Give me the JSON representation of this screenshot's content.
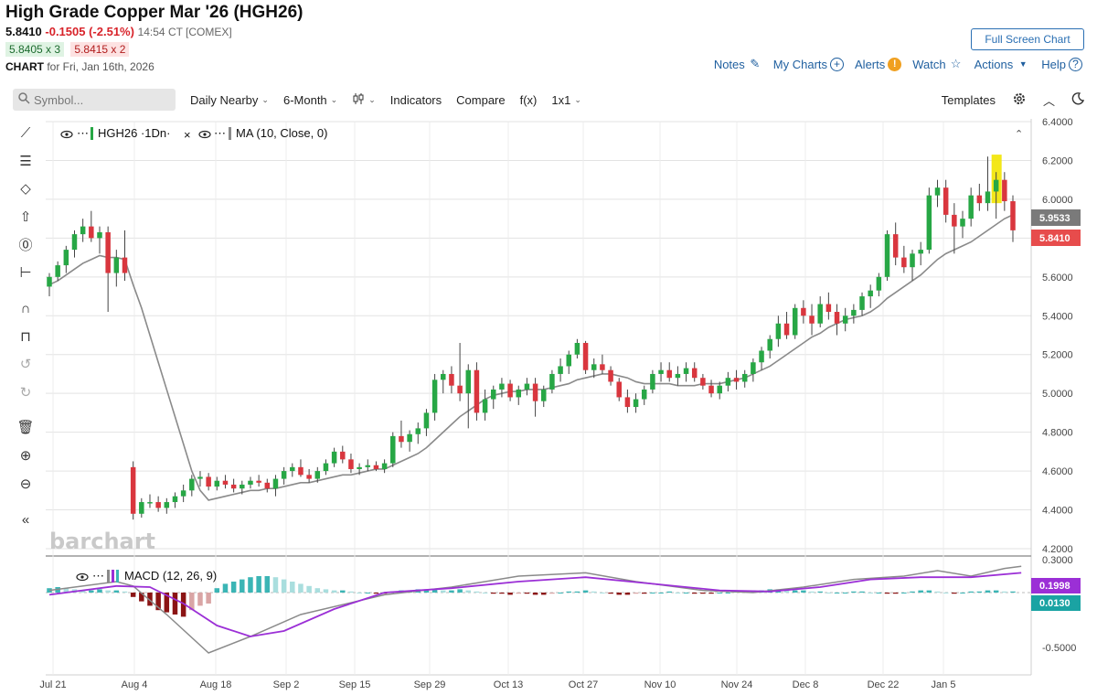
{
  "header": {
    "title": "High Grade Copper Mar '26 (HGH26)",
    "last": "5.8410",
    "change": "-0.1505 (-2.51%)",
    "timestamp": "14:54 CT [COMEX]",
    "bid": "5.8405 x 3",
    "ask": "5.8415 x 2",
    "chart_label": "CHART",
    "chart_date": "for Fri, Jan 16th, 2026"
  },
  "buttons": {
    "fullscreen": "Full Screen Chart",
    "notes": "Notes",
    "mycharts": "My Charts",
    "alerts": "Alerts",
    "watch": "Watch",
    "actions": "Actions",
    "help": "Help"
  },
  "toolbar": {
    "symbol_placeholder": "Symbol...",
    "interval": "Daily Nearby",
    "range": "6-Month",
    "indicators": "Indicators",
    "compare": "Compare",
    "fx": "f(x)",
    "layout": "1x1",
    "templates": "Templates"
  },
  "icons": {
    "symbol": "search-icon",
    "notes": "pencil-icon",
    "mycharts": "plus-circle-icon",
    "alerts": "exclamation-circle-icon",
    "watch": "star-icon",
    "actions": "caret-down-icon",
    "help": "question-circle-icon",
    "bar_type": "candlestick-icon",
    "settings": "gear-icon",
    "collapse": "chevron-up-icon",
    "theme": "moon-icon",
    "side_tools": [
      "line-tool-icon",
      "fib-tool-icon",
      "shape-tool-icon",
      "arrow-tool-icon",
      "text-tool-icon",
      "measure-tool-icon",
      "magnet-icon",
      "unlock-icon",
      "undo-icon",
      "redo-icon",
      "trash-icon",
      "zoom-in-icon",
      "zoom-out-icon",
      "collapse-sidebar-icon"
    ]
  },
  "legend": {
    "symbol": "HGH26 ·1Dn·",
    "ma": "MA (10, Close, 0)",
    "macd": "MACD (12, 26, 9)"
  },
  "watermark": "barchart",
  "colors": {
    "up": "#27a745",
    "down": "#d9363e",
    "ma": "#8a8a8a",
    "macd_line": "#8a8a8a",
    "signal_line": "#9b2fd6",
    "hist_pos": "#3bb5b5",
    "hist_pos_light": "#a9dede",
    "hist_neg": "#8b1414",
    "hist_neg_light": "#d9a5a5",
    "price_tag": "#e74c4c",
    "ma_tag": "#7a7a7a",
    "macd_tag": "#9b2fd6",
    "hist_tag": "#1aa3a3",
    "highlight": "#f2e400"
  },
  "chart_data": {
    "type": "candlestick",
    "ylim": [
      4.2,
      6.4
    ],
    "yticks": [
      "6.4000",
      "6.2000",
      "6.0000",
      "5.8000",
      "5.6000",
      "5.4000",
      "5.2000",
      "5.0000",
      "4.8000",
      "4.6000",
      "4.4000",
      "4.2000"
    ],
    "x_labels": [
      "Jul 21",
      "Aug 4",
      "Aug 18",
      "Sep 2",
      "Sep 15",
      "Sep 29",
      "Oct 13",
      "Oct 27",
      "Nov 10",
      "Nov 24",
      "Dec 8",
      "Dec 22",
      "Jan 5"
    ],
    "tags": {
      "ma": "5.9533",
      "last": "5.8410"
    },
    "series_note": "OHLC per trading day, in $/lb",
    "ohlc": [
      [
        5.55,
        5.62,
        5.5,
        5.6
      ],
      [
        5.6,
        5.68,
        5.58,
        5.66
      ],
      [
        5.66,
        5.76,
        5.62,
        5.74
      ],
      [
        5.74,
        5.84,
        5.7,
        5.82
      ],
      [
        5.82,
        5.9,
        5.78,
        5.86
      ],
      [
        5.86,
        5.94,
        5.78,
        5.8
      ],
      [
        5.8,
        5.86,
        5.72,
        5.83
      ],
      [
        5.83,
        5.86,
        5.42,
        5.62
      ],
      [
        5.62,
        5.74,
        5.55,
        5.7
      ],
      [
        5.7,
        5.84,
        5.58,
        5.62
      ],
      [
        4.62,
        4.65,
        4.35,
        4.38
      ],
      [
        4.38,
        4.46,
        4.36,
        4.44
      ],
      [
        4.44,
        4.48,
        4.41,
        4.44
      ],
      [
        4.44,
        4.47,
        4.39,
        4.41
      ],
      [
        4.41,
        4.46,
        4.38,
        4.44
      ],
      [
        4.44,
        4.49,
        4.41,
        4.47
      ],
      [
        4.47,
        4.53,
        4.44,
        4.5
      ],
      [
        4.5,
        4.58,
        4.47,
        4.56
      ],
      [
        4.56,
        4.6,
        4.52,
        4.57
      ],
      [
        4.57,
        4.59,
        4.5,
        4.52
      ],
      [
        4.52,
        4.57,
        4.5,
        4.55
      ],
      [
        4.55,
        4.58,
        4.51,
        4.53
      ],
      [
        4.53,
        4.56,
        4.49,
        4.51
      ],
      [
        4.51,
        4.55,
        4.48,
        4.53
      ],
      [
        4.53,
        4.57,
        4.51,
        4.55
      ],
      [
        4.55,
        4.58,
        4.52,
        4.54
      ],
      [
        4.54,
        4.56,
        4.49,
        4.51
      ],
      [
        4.51,
        4.58,
        4.47,
        4.56
      ],
      [
        4.56,
        4.62,
        4.53,
        4.6
      ],
      [
        4.6,
        4.64,
        4.57,
        4.62
      ],
      [
        4.62,
        4.66,
        4.57,
        4.58
      ],
      [
        4.58,
        4.61,
        4.54,
        4.56
      ],
      [
        4.56,
        4.62,
        4.54,
        4.6
      ],
      [
        4.6,
        4.66,
        4.58,
        4.64
      ],
      [
        4.64,
        4.72,
        4.62,
        4.7
      ],
      [
        4.7,
        4.73,
        4.64,
        4.66
      ],
      [
        4.66,
        4.69,
        4.59,
        4.61
      ],
      [
        4.61,
        4.64,
        4.58,
        4.62
      ],
      [
        4.62,
        4.66,
        4.6,
        4.63
      ],
      [
        4.63,
        4.65,
        4.6,
        4.61
      ],
      [
        4.61,
        4.66,
        4.59,
        4.64
      ],
      [
        4.64,
        4.8,
        4.62,
        4.78
      ],
      [
        4.78,
        4.86,
        4.72,
        4.75
      ],
      [
        4.75,
        4.81,
        4.7,
        4.79
      ],
      [
        4.79,
        4.85,
        4.74,
        4.82
      ],
      [
        4.82,
        4.92,
        4.78,
        4.9
      ],
      [
        4.9,
        5.1,
        4.86,
        5.07
      ],
      [
        5.07,
        5.12,
        5.0,
        5.1
      ],
      [
        5.1,
        5.14,
        5.0,
        5.04
      ],
      [
        5.04,
        5.26,
        4.96,
        5.0
      ],
      [
        5.0,
        5.15,
        4.82,
        5.12
      ],
      [
        5.12,
        5.16,
        4.86,
        4.9
      ],
      [
        4.9,
        5.02,
        4.86,
        4.97
      ],
      [
        4.97,
        5.04,
        4.92,
        5.02
      ],
      [
        5.02,
        5.08,
        4.98,
        5.05
      ],
      [
        5.05,
        5.07,
        4.96,
        4.98
      ],
      [
        4.98,
        5.04,
        4.94,
        5.02
      ],
      [
        5.02,
        5.08,
        4.99,
        5.05
      ],
      [
        5.05,
        5.08,
        4.88,
        4.96
      ],
      [
        4.96,
        5.04,
        4.93,
        5.02
      ],
      [
        5.02,
        5.12,
        5.0,
        5.1
      ],
      [
        5.1,
        5.18,
        5.06,
        5.14
      ],
      [
        5.14,
        5.22,
        5.1,
        5.2
      ],
      [
        5.2,
        5.28,
        5.18,
        5.26
      ],
      [
        5.26,
        5.27,
        5.1,
        5.12
      ],
      [
        5.12,
        5.18,
        5.08,
        5.15
      ],
      [
        5.15,
        5.2,
        5.1,
        5.12
      ],
      [
        5.12,
        5.14,
        5.04,
        5.06
      ],
      [
        5.06,
        5.08,
        4.96,
        4.98
      ],
      [
        4.98,
        5.02,
        4.9,
        4.93
      ],
      [
        4.93,
        5.0,
        4.9,
        4.97
      ],
      [
        4.97,
        5.04,
        4.94,
        5.02
      ],
      [
        5.02,
        5.12,
        5.0,
        5.1
      ],
      [
        5.1,
        5.16,
        5.06,
        5.12
      ],
      [
        5.12,
        5.16,
        5.06,
        5.08
      ],
      [
        5.08,
        5.14,
        5.04,
        5.1
      ],
      [
        5.1,
        5.16,
        5.06,
        5.13
      ],
      [
        5.13,
        5.16,
        5.06,
        5.08
      ],
      [
        5.08,
        5.1,
        5.02,
        5.04
      ],
      [
        5.04,
        5.07,
        4.98,
        5.0
      ],
      [
        5.0,
        5.06,
        4.97,
        5.04
      ],
      [
        5.04,
        5.11,
        5.01,
        5.08
      ],
      [
        5.08,
        5.12,
        5.02,
        5.06
      ],
      [
        5.06,
        5.12,
        5.03,
        5.1
      ],
      [
        5.1,
        5.18,
        5.06,
        5.16
      ],
      [
        5.16,
        5.24,
        5.12,
        5.22
      ],
      [
        5.22,
        5.3,
        5.18,
        5.28
      ],
      [
        5.28,
        5.4,
        5.24,
        5.36
      ],
      [
        5.36,
        5.42,
        5.28,
        5.3
      ],
      [
        5.3,
        5.46,
        5.28,
        5.44
      ],
      [
        5.44,
        5.48,
        5.36,
        5.4
      ],
      [
        5.4,
        5.46,
        5.3,
        5.36
      ],
      [
        5.36,
        5.5,
        5.34,
        5.46
      ],
      [
        5.46,
        5.52,
        5.38,
        5.42
      ],
      [
        5.42,
        5.46,
        5.3,
        5.36
      ],
      [
        5.36,
        5.44,
        5.32,
        5.4
      ],
      [
        5.4,
        5.46,
        5.36,
        5.43
      ],
      [
        5.43,
        5.52,
        5.4,
        5.5
      ],
      [
        5.5,
        5.56,
        5.44,
        5.53
      ],
      [
        5.53,
        5.62,
        5.5,
        5.6
      ],
      [
        5.6,
        5.84,
        5.58,
        5.82
      ],
      [
        5.82,
        5.88,
        5.66,
        5.7
      ],
      [
        5.7,
        5.76,
        5.62,
        5.65
      ],
      [
        5.65,
        5.74,
        5.58,
        5.72
      ],
      [
        5.72,
        5.78,
        5.66,
        5.74
      ],
      [
        5.74,
        6.06,
        5.72,
        6.02
      ],
      [
        6.02,
        6.1,
        5.96,
        6.06
      ],
      [
        6.06,
        6.1,
        5.88,
        5.92
      ],
      [
        5.92,
        5.98,
        5.72,
        5.86
      ],
      [
        5.86,
        5.94,
        5.8,
        5.9
      ],
      [
        5.9,
        6.06,
        5.86,
        6.02
      ],
      [
        6.02,
        6.08,
        5.94,
        5.98
      ],
      [
        5.98,
        6.22,
        5.94,
        6.04
      ],
      [
        6.04,
        6.14,
        5.9,
        6.1
      ],
      [
        6.1,
        6.14,
        5.94,
        5.99
      ],
      [
        5.99,
        6.02,
        5.78,
        5.84
      ]
    ],
    "ma_values": [
      5.56,
      5.58,
      5.61,
      5.64,
      5.67,
      5.69,
      5.71,
      5.7,
      5.7,
      5.69,
      5.56,
      5.44,
      5.3,
      5.16,
      5.02,
      4.88,
      4.74,
      4.6,
      4.5,
      4.45,
      4.46,
      4.47,
      4.48,
      4.49,
      4.5,
      4.5,
      4.51,
      4.51,
      4.52,
      4.53,
      4.54,
      4.54,
      4.55,
      4.56,
      4.57,
      4.58,
      4.58,
      4.59,
      4.6,
      4.61,
      4.61,
      4.63,
      4.65,
      4.67,
      4.69,
      4.72,
      4.76,
      4.8,
      4.84,
      4.88,
      4.91,
      4.94,
      4.97,
      4.99,
      5.0,
      5.01,
      5.01,
      5.02,
      5.02,
      5.02,
      5.03,
      5.04,
      5.05,
      5.07,
      5.08,
      5.09,
      5.1,
      5.1,
      5.09,
      5.08,
      5.06,
      5.05,
      5.05,
      5.05,
      5.05,
      5.04,
      5.04,
      5.04,
      5.05,
      5.05,
      5.05,
      5.06,
      5.07,
      5.08,
      5.1,
      5.12,
      5.14,
      5.17,
      5.2,
      5.23,
      5.26,
      5.29,
      5.31,
      5.34,
      5.36,
      5.38,
      5.39,
      5.4,
      5.42,
      5.45,
      5.49,
      5.52,
      5.55,
      5.58,
      5.61,
      5.65,
      5.69,
      5.72,
      5.74,
      5.76,
      5.78,
      5.81,
      5.84,
      5.87,
      5.9,
      5.92
    ],
    "macd": {
      "ylim": [
        -0.6,
        0.3
      ],
      "yticks": [
        "0.3000",
        "-0.5000"
      ],
      "tags": {
        "macd": "0.1998",
        "hist": "0.0130"
      },
      "macd_line": [
        [
          0,
          0.02
        ],
        [
          8,
          0.1
        ],
        [
          10,
          0.06
        ],
        [
          14,
          -0.2
        ],
        [
          19,
          -0.55
        ],
        [
          24,
          -0.4
        ],
        [
          30,
          -0.2
        ],
        [
          40,
          -0.02
        ],
        [
          48,
          0.05
        ],
        [
          56,
          0.15
        ],
        [
          64,
          0.18
        ],
        [
          70,
          0.1
        ],
        [
          78,
          0.02
        ],
        [
          84,
          0.0
        ],
        [
          90,
          0.05
        ],
        [
          96,
          0.12
        ],
        [
          102,
          0.15
        ],
        [
          106,
          0.2
        ],
        [
          110,
          0.15
        ],
        [
          114,
          0.22
        ],
        [
          116,
          0.24
        ]
      ],
      "signal_line": [
        [
          0,
          -0.02
        ],
        [
          8,
          0.06
        ],
        [
          12,
          0.05
        ],
        [
          16,
          -0.1
        ],
        [
          20,
          -0.3
        ],
        [
          24,
          -0.4
        ],
        [
          28,
          -0.35
        ],
        [
          34,
          -0.15
        ],
        [
          40,
          0.0
        ],
        [
          48,
          0.04
        ],
        [
          56,
          0.1
        ],
        [
          64,
          0.14
        ],
        [
          72,
          0.08
        ],
        [
          80,
          0.02
        ],
        [
          86,
          0.01
        ],
        [
          92,
          0.05
        ],
        [
          98,
          0.12
        ],
        [
          104,
          0.14
        ],
        [
          110,
          0.14
        ],
        [
          116,
          0.18
        ]
      ],
      "histogram": [
        0.04,
        0.05,
        0.04,
        0.03,
        0.02,
        0.02,
        0.03,
        0.02,
        0.02,
        0.01,
        -0.04,
        -0.08,
        -0.12,
        -0.16,
        -0.18,
        -0.2,
        -0.22,
        -0.16,
        -0.12,
        -0.1,
        0.04,
        0.08,
        0.1,
        0.12,
        0.14,
        0.15,
        0.15,
        0.14,
        0.12,
        0.1,
        0.08,
        0.06,
        0.04,
        0.03,
        0.02,
        0.02,
        0.01,
        0.0,
        0.0,
        -0.01,
        -0.01,
        0.01,
        0.02,
        0.02,
        0.03,
        0.03,
        0.03,
        0.02,
        0.02,
        0.03,
        0.02,
        0.01,
        0.0,
        -0.01,
        -0.01,
        -0.02,
        -0.01,
        -0.01,
        -0.02,
        -0.02,
        -0.01,
        0.0,
        0.01,
        0.01,
        0.02,
        0.01,
        0.0,
        -0.01,
        -0.02,
        -0.02,
        -0.01,
        -0.01,
        0.0,
        0.0,
        0.01,
        0.0,
        0.0,
        -0.01,
        -0.01,
        -0.01,
        0.0,
        0.0,
        0.01,
        0.01,
        0.02,
        0.02,
        0.03,
        0.03,
        0.02,
        0.02,
        0.02,
        0.01,
        0.01,
        0.0,
        0.0,
        0.0,
        0.01,
        0.01,
        0.0,
        0.0,
        -0.01,
        -0.01,
        0.0,
        0.01,
        0.02,
        0.02,
        0.01,
        0.0,
        -0.01,
        0.0,
        0.01,
        0.01,
        0.02,
        0.02,
        0.01,
        0.01
      ]
    }
  }
}
